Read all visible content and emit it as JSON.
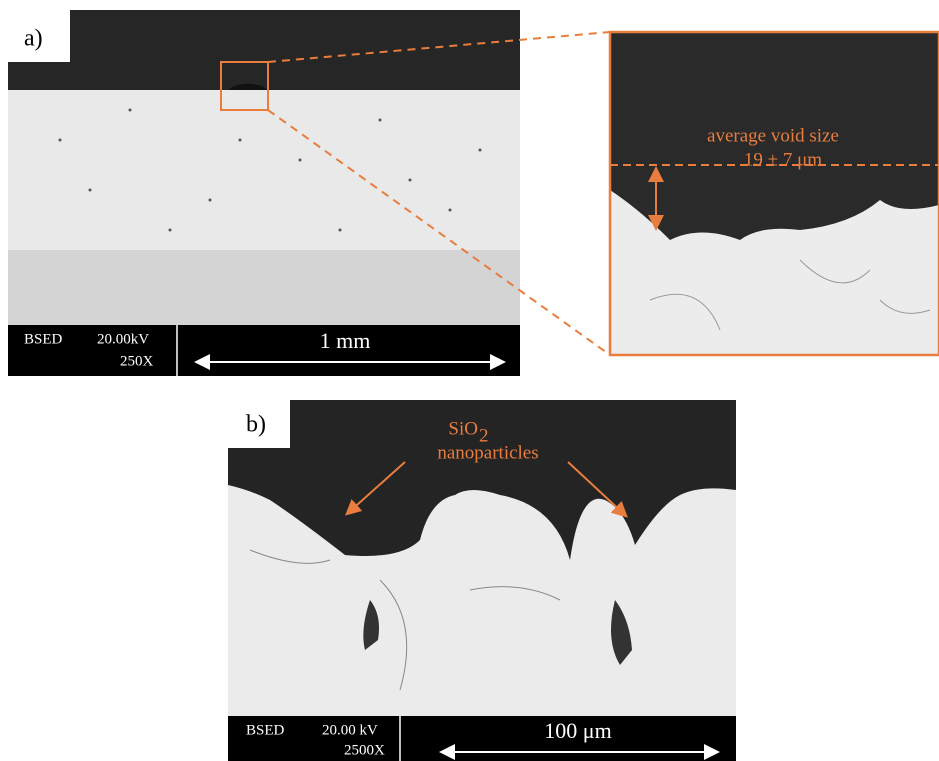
{
  "panel_a": {
    "label": "a)",
    "scale_bar": {
      "detector": "BSED",
      "voltage": "20.00kV",
      "magnification": "250X",
      "length": "1 mm"
    },
    "inset": {
      "annotation_line1": "average void size",
      "annotation_line2": "19 ± 7 μm"
    }
  },
  "panel_b": {
    "label": "b)",
    "annotation": {
      "formula_base": "SiO",
      "formula_subscript": "2",
      "line2": "nanoparticles"
    },
    "scale_bar": {
      "detector": "BSED",
      "voltage": "20.00 kV",
      "magnification": "2500X",
      "length": "100 μm"
    }
  }
}
